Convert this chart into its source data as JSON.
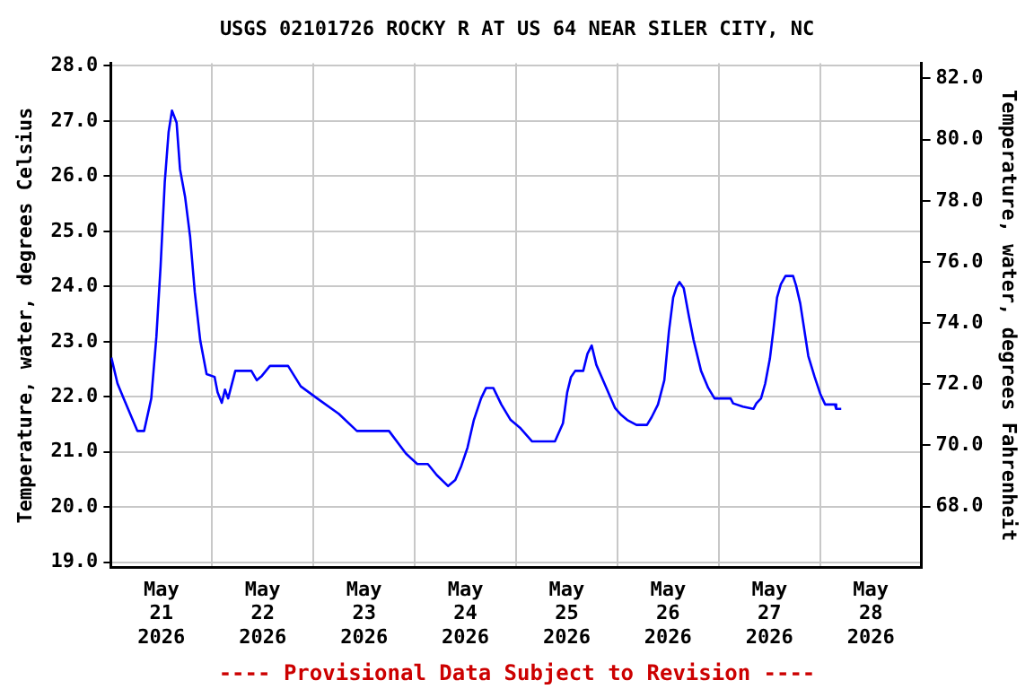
{
  "chart_data": {
    "type": "line",
    "title": "USGS 02101726 ROCKY R AT US 64 NEAR SILER CITY, NC",
    "ylabel": "Temperature, water, degrees Celsius",
    "y2label": "Temperature, water, degrees Fahrenheit",
    "annotations": [
      "---- Provisional Data Subject to Revision ----"
    ],
    "xlim": [
      "2026-05-21T00:00",
      "2026-05-29T00:00"
    ],
    "xticks": [
      {
        "value": "2026-05-21T00:00",
        "label": null
      },
      {
        "value": "2026-05-21T12:00",
        "label": "May 21 2026"
      },
      {
        "value": "2026-05-22T00:00",
        "label": null
      },
      {
        "value": "2026-05-22T12:00",
        "label": "May 22 2026"
      },
      {
        "value": "2026-05-23T00:00",
        "label": null
      },
      {
        "value": "2026-05-23T12:00",
        "label": "May 23 2026"
      },
      {
        "value": "2026-05-24T00:00",
        "label": null
      },
      {
        "value": "2026-05-24T12:00",
        "label": "May 24 2026"
      },
      {
        "value": "2026-05-25T00:00",
        "label": null
      },
      {
        "value": "2026-05-25T12:00",
        "label": "May 25 2026"
      },
      {
        "value": "2026-05-26T00:00",
        "label": null
      },
      {
        "value": "2026-05-26T12:00",
        "label": "May 26 2026"
      },
      {
        "value": "2026-05-27T00:00",
        "label": null
      },
      {
        "value": "2026-05-27T12:00",
        "label": "May 27 2026"
      },
      {
        "value": "2026-05-28T00:00",
        "label": null
      },
      {
        "value": "2026-05-28T12:00",
        "label": "May 28 2026"
      },
      {
        "value": "2026-05-29T00:00",
        "label": null
      }
    ],
    "ylim": [
      18.9,
      28.05
    ],
    "yticks": [
      {
        "value": 19,
        "label": "19.0"
      },
      {
        "value": 20,
        "label": "20.0"
      },
      {
        "value": 21,
        "label": "21.0"
      },
      {
        "value": 22,
        "label": "22.0"
      },
      {
        "value": 23,
        "label": "23.0"
      },
      {
        "value": 24,
        "label": "24.0"
      },
      {
        "value": 25,
        "label": "25.0"
      },
      {
        "value": 26,
        "label": "26.0"
      },
      {
        "value": 27,
        "label": "27.0"
      },
      {
        "value": 28,
        "label": "28.0"
      }
    ],
    "y2lim": [
      66.0,
      82.5
    ],
    "y2ticks": [
      {
        "value": 68,
        "label": "68.0"
      },
      {
        "value": 70,
        "label": "70.0"
      },
      {
        "value": 72,
        "label": "72.0"
      },
      {
        "value": 74,
        "label": "74.0"
      },
      {
        "value": 76,
        "label": "76.0"
      },
      {
        "value": 78,
        "label": "78.0"
      },
      {
        "value": 80,
        "label": "80.0"
      },
      {
        "value": 82,
        "label": "82.0"
      }
    ],
    "grid": true,
    "legend": false,
    "marker": "none",
    "line_style": "solid",
    "series": [
      {
        "color": "#0000ff",
        "x": [
          "2026-05-21T00:09",
          "2026-05-21T01:36",
          "2026-05-21T03:03",
          "2026-05-21T05:12",
          "2026-05-21T06:18",
          "2026-05-21T07:54",
          "2026-05-21T09:36",
          "2026-05-21T10:48",
          "2026-05-21T11:48",
          "2026-05-21T12:48",
          "2026-05-21T13:42",
          "2026-05-21T14:30",
          "2026-05-21T15:36",
          "2026-05-21T16:24",
          "2026-05-21T17:36",
          "2026-05-21T18:48",
          "2026-05-21T19:54",
          "2026-05-21T21:12",
          "2026-05-21T22:42",
          "2026-05-22T00:36",
          "2026-05-22T01:18",
          "2026-05-22T02:18",
          "2026-05-22T03:03",
          "2026-05-22T03:48",
          "2026-05-22T05:30",
          "2026-05-22T09:18",
          "2026-05-22T10:36",
          "2026-05-22T11:48",
          "2026-05-22T13:42",
          "2026-05-22T18:00",
          "2026-05-22T21:00",
          "2026-05-23T00:54",
          "2026-05-23T06:00",
          "2026-05-23T10:18",
          "2026-05-23T17:54",
          "2026-05-23T21:54",
          "2026-05-24T00:36",
          "2026-05-24T03:06",
          "2026-05-24T05:12",
          "2026-05-24T07:54",
          "2026-05-24T09:36",
          "2026-05-24T11:00",
          "2026-05-24T12:30",
          "2026-05-24T14:00",
          "2026-05-24T15:42",
          "2026-05-24T16:54",
          "2026-05-24T18:36",
          "2026-05-24T20:30",
          "2026-05-24T22:42",
          "2026-05-25T00:54",
          "2026-05-25T03:48",
          "2026-05-25T09:12",
          "2026-05-25T11:06",
          "2026-05-25T12:06",
          "2026-05-25T13:00",
          "2026-05-25T14:00",
          "2026-05-25T15:54",
          "2026-05-25T16:54",
          "2026-05-25T17:54",
          "2026-05-25T19:00",
          "2026-05-25T21:12",
          "2026-05-25T23:24",
          "2026-05-26T00:54",
          "2026-05-26T02:18",
          "2026-05-26T04:30",
          "2026-05-26T07:00",
          "2026-05-26T08:06",
          "2026-05-26T09:36",
          "2026-05-26T11:06",
          "2026-05-26T12:12",
          "2026-05-26T13:12",
          "2026-05-26T14:00",
          "2026-05-26T14:42",
          "2026-05-26T15:42",
          "2026-05-26T16:54",
          "2026-05-26T18:00",
          "2026-05-26T19:48",
          "2026-05-26T21:30",
          "2026-05-26T23:00",
          "2026-05-27T02:48",
          "2026-05-27T03:24",
          "2026-05-27T05:42",
          "2026-05-27T08:12",
          "2026-05-27T08:54",
          "2026-05-27T10:00",
          "2026-05-27T11:00",
          "2026-05-27T12:06",
          "2026-05-27T12:54",
          "2026-05-27T13:48",
          "2026-05-27T14:42",
          "2026-05-27T15:48",
          "2026-05-27T17:36",
          "2026-05-27T18:18",
          "2026-05-27T19:18",
          "2026-05-27T20:12",
          "2026-05-27T21:12",
          "2026-05-27T22:42",
          "2026-05-28T00:06",
          "2026-05-28T01:12",
          "2026-05-28T03:30",
          "2026-05-28T03:48",
          "2026-05-28T05:00"
        ],
        "values": [
          22.71,
          22.24,
          21.97,
          21.58,
          21.38,
          21.38,
          21.97,
          23.08,
          24.36,
          25.9,
          26.8,
          27.19,
          26.97,
          26.13,
          25.63,
          24.9,
          23.9,
          23.02,
          22.41,
          22.36,
          22.08,
          21.89,
          22.13,
          21.97,
          22.47,
          22.47,
          22.3,
          22.38,
          22.56,
          22.56,
          22.19,
          21.97,
          21.69,
          21.38,
          21.38,
          20.97,
          20.78,
          20.78,
          20.58,
          20.38,
          20.49,
          20.74,
          21.08,
          21.58,
          21.97,
          22.16,
          22.16,
          21.86,
          21.58,
          21.44,
          21.19,
          21.19,
          21.52,
          22.08,
          22.36,
          22.47,
          22.47,
          22.78,
          22.93,
          22.58,
          22.19,
          21.8,
          21.67,
          21.58,
          21.49,
          21.49,
          21.63,
          21.86,
          22.3,
          23.19,
          23.8,
          23.99,
          24.08,
          23.97,
          23.47,
          23.04,
          22.47,
          22.16,
          21.97,
          21.97,
          21.88,
          21.82,
          21.78,
          21.88,
          21.97,
          22.24,
          22.69,
          23.19,
          23.8,
          24.04,
          24.19,
          24.19,
          24.02,
          23.69,
          23.24,
          22.74,
          22.36,
          22.04,
          21.86,
          21.86,
          21.78,
          21.78
        ]
      }
    ]
  }
}
